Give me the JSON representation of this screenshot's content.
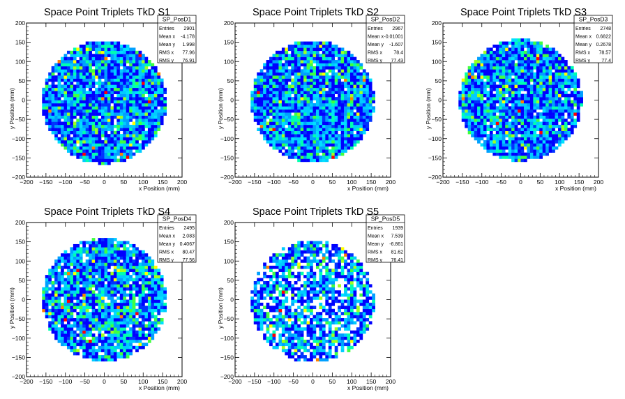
{
  "chart_data": [
    {
      "type": "heatmap",
      "title": "Space Point Triplets TkD S1",
      "xlabel": "x Position (mm)",
      "ylabel": "y Position (mm)",
      "xlim": [
        -200,
        200
      ],
      "ylim": [
        -200,
        200
      ],
      "xticks": [
        -200,
        -150,
        -100,
        -50,
        0,
        50,
        100,
        150,
        200
      ],
      "yticks": [
        -200,
        -150,
        -100,
        -50,
        0,
        50,
        100,
        150,
        200
      ],
      "grid": false,
      "stats": {
        "name": "SP_PosD1",
        "rows": [
          {
            "label": "Entries",
            "value": "2901"
          },
          {
            "label": "Mean x",
            "value": "-4.178"
          },
          {
            "label": "Mean y",
            "value": "1.998"
          },
          {
            "label": "RMS x",
            "value": "77.96"
          },
          {
            "label": "RMS y",
            "value": "76.91"
          }
        ]
      },
      "disk": {
        "center": [
          0,
          -5
        ],
        "radius": 160,
        "fill": 0.97,
        "seed": 11
      }
    },
    {
      "type": "heatmap",
      "title": "Space Point Triplets TkD S2",
      "xlabel": "x Position (mm)",
      "ylabel": "y Position (mm)",
      "xlim": [
        -200,
        200
      ],
      "ylim": [
        -200,
        200
      ],
      "xticks": [
        -200,
        -150,
        -100,
        -50,
        0,
        50,
        100,
        150,
        200
      ],
      "yticks": [
        -200,
        -150,
        -100,
        -50,
        0,
        50,
        100,
        150,
        200
      ],
      "grid": false,
      "stats": {
        "name": "SP_PosD2",
        "rows": [
          {
            "label": "Entries",
            "value": "2967"
          },
          {
            "label": "Mean x",
            "value": "-0.01001"
          },
          {
            "label": "Mean y",
            "value": "-1.607"
          },
          {
            "label": "RMS x",
            "value": "78.4"
          },
          {
            "label": "RMS y",
            "value": "77.43"
          }
        ]
      },
      "disk": {
        "center": [
          0,
          -3
        ],
        "radius": 158,
        "fill": 0.97,
        "seed": 23
      }
    },
    {
      "type": "heatmap",
      "title": "Space Point Triplets TkD S3",
      "xlabel": "x Position (mm)",
      "ylabel": "y Position (mm)",
      "xlim": [
        -200,
        200
      ],
      "ylim": [
        -200,
        200
      ],
      "xticks": [
        -200,
        -150,
        -100,
        -50,
        0,
        50,
        100,
        150,
        200
      ],
      "yticks": [
        -200,
        -150,
        -100,
        -50,
        0,
        50,
        100,
        150,
        200
      ],
      "grid": false,
      "stats": {
        "name": "SP_PosD3",
        "rows": [
          {
            "label": "Entries",
            "value": "2748"
          },
          {
            "label": "Mean x",
            "value": "0.6822"
          },
          {
            "label": "Mean y",
            "value": "0.2678"
          },
          {
            "label": "RMS x",
            "value": "78.57"
          },
          {
            "label": "RMS y",
            "value": "77.4"
          }
        ]
      },
      "disk": {
        "center": [
          0,
          0
        ],
        "radius": 158,
        "fill": 0.95,
        "seed": 37
      }
    },
    {
      "type": "heatmap",
      "title": "Space Point Triplets TkD S4",
      "xlabel": "x Position (mm)",
      "ylabel": "y Position (mm)",
      "xlim": [
        -200,
        200
      ],
      "ylim": [
        -200,
        200
      ],
      "xticks": [
        -200,
        -150,
        -100,
        -50,
        0,
        50,
        100,
        150,
        200
      ],
      "yticks": [
        -200,
        -150,
        -100,
        -50,
        0,
        50,
        100,
        150,
        200
      ],
      "grid": false,
      "stats": {
        "name": "SP_PosD4",
        "rows": [
          {
            "label": "Entries",
            "value": "2495"
          },
          {
            "label": "Mean x",
            "value": "2.083"
          },
          {
            "label": "Mean y",
            "value": "0.4067"
          },
          {
            "label": "RMS x",
            "value": "80.47"
          },
          {
            "label": "RMS y",
            "value": "77.56"
          }
        ]
      },
      "disk": {
        "center": [
          0,
          0
        ],
        "radius": 160,
        "fill": 0.92,
        "seed": 41
      }
    },
    {
      "type": "heatmap",
      "title": "Space Point Triplets TkD S5",
      "xlabel": "x Position (mm)",
      "ylabel": "y Position (mm)",
      "xlim": [
        -200,
        200
      ],
      "ylim": [
        -200,
        200
      ],
      "xticks": [
        -200,
        -150,
        -100,
        -50,
        0,
        50,
        100,
        150,
        200
      ],
      "yticks": [
        -200,
        -150,
        -100,
        -50,
        0,
        50,
        100,
        150,
        200
      ],
      "grid": false,
      "stats": {
        "name": "SP_PosD5",
        "rows": [
          {
            "label": "Entries",
            "value": "1939"
          },
          {
            "label": "Mean x",
            "value": "7.539"
          },
          {
            "label": "Mean y",
            "value": "-6.861"
          },
          {
            "label": "RMS x",
            "value": "81.62"
          },
          {
            "label": "RMS y",
            "value": "76.41"
          }
        ]
      },
      "disk": {
        "center": [
          0,
          -5
        ],
        "radius": 158,
        "fill": 0.72,
        "seed": 53
      }
    }
  ],
  "palette": [
    "#0000ff",
    "#0033ff",
    "#00a0ff",
    "#00ccff",
    "#00e0ff",
    "#00ffb0",
    "#40ff40",
    "#a0ff20",
    "#ffff00",
    "#ff8000",
    "#ff0000"
  ]
}
